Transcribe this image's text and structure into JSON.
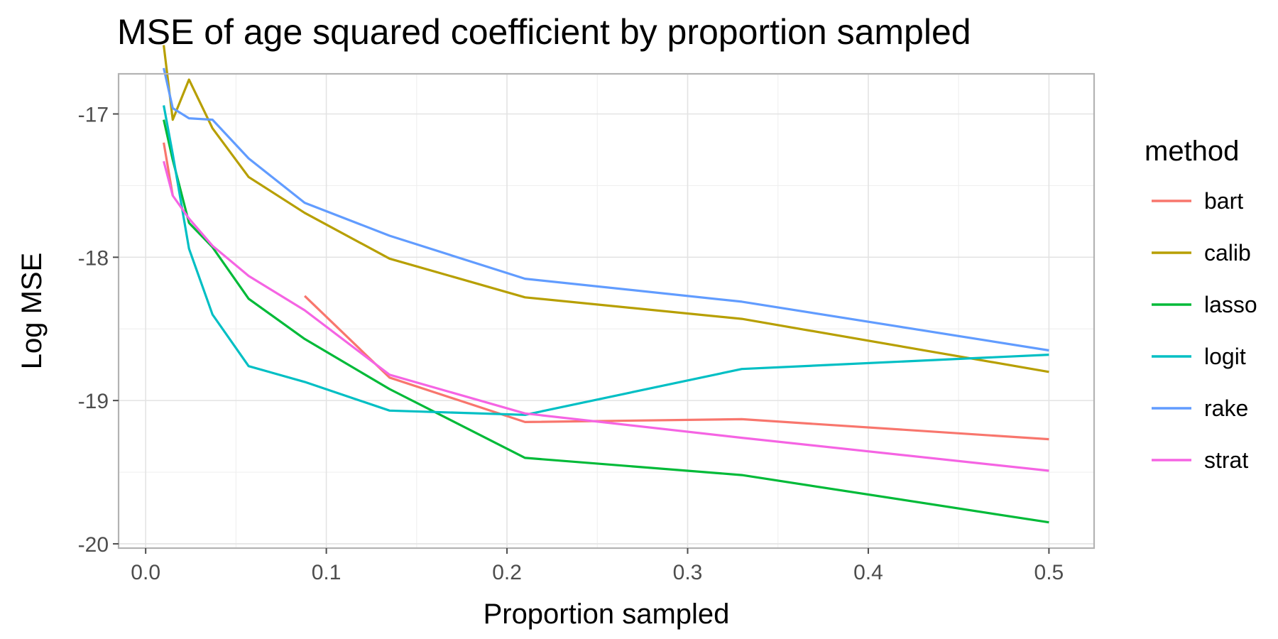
{
  "chart_data": {
    "type": "line",
    "title": "MSE of age squared coefficient by proportion sampled",
    "xlabel": "Proportion sampled",
    "ylabel": "Log MSE",
    "xlim": [
      -0.015,
      0.525
    ],
    "ylim": [
      -20.03,
      -16.72
    ],
    "x_ticks": [
      0.0,
      0.1,
      0.2,
      0.3,
      0.4,
      0.5
    ],
    "x_tick_labels": [
      "0.0",
      "0.1",
      "0.2",
      "0.3",
      "0.4",
      "0.5"
    ],
    "y_ticks": [
      -20,
      -19,
      -18,
      -17
    ],
    "y_tick_labels": [
      "-20",
      "-19",
      "-18",
      "-17"
    ],
    "grid": true,
    "legend": {
      "title": "method",
      "placement": "right"
    },
    "series": [
      {
        "name": "bart",
        "color": "#F8766D",
        "x": [
          0.01,
          0.015
        ],
        "y": [
          -17.2,
          -17.57
        ],
        "segments": [
          {
            "x": [
              0.01,
              0.015
            ],
            "y": [
              -17.2,
              -17.57
            ]
          },
          {
            "x": [
              0.088,
              0.135,
              0.21,
              0.33,
              0.5
            ],
            "y": [
              -18.27,
              -18.84,
              -19.15,
              -19.13,
              -19.27
            ]
          }
        ]
      },
      {
        "name": "calib",
        "color": "#B79F00",
        "segments": [
          {
            "x": [
              0.01,
              0.015,
              0.024,
              0.037,
              0.057,
              0.088,
              0.135,
              0.21,
              0.33,
              0.5
            ],
            "y": [
              -16.52,
              -17.04,
              -16.76,
              -17.1,
              -17.44,
              -17.69,
              -18.01,
              -18.28,
              -18.43,
              -18.8
            ]
          }
        ]
      },
      {
        "name": "lasso",
        "color": "#00BA38",
        "segments": [
          {
            "x": [
              0.01,
              0.015,
              0.024,
              0.037,
              0.057,
              0.088,
              0.135,
              0.21,
              0.33,
              0.5
            ],
            "y": [
              -17.04,
              -17.32,
              -17.76,
              -17.93,
              -18.29,
              -18.57,
              -18.92,
              -19.4,
              -19.52,
              -19.85
            ]
          }
        ]
      },
      {
        "name": "logit",
        "color": "#00BFC4",
        "segments": [
          {
            "x": [
              0.01,
              0.015,
              0.024,
              0.037,
              0.057,
              0.088,
              0.135,
              0.21,
              0.33,
              0.5
            ],
            "y": [
              -16.94,
              -17.28,
              -17.94,
              -18.4,
              -18.76,
              -18.87,
              -19.07,
              -19.1,
              -18.78,
              -18.68
            ]
          }
        ]
      },
      {
        "name": "rake",
        "color": "#619CFF",
        "segments": [
          {
            "x": [
              0.01,
              0.015,
              0.024,
              0.037,
              0.057,
              0.088,
              0.135,
              0.21,
              0.33,
              0.5
            ],
            "y": [
              -16.68,
              -16.96,
              -17.03,
              -17.04,
              -17.31,
              -17.62,
              -17.85,
              -18.15,
              -18.31,
              -18.65
            ]
          }
        ]
      },
      {
        "name": "strat",
        "color": "#F564E3",
        "segments": [
          {
            "x": [
              0.01,
              0.015,
              0.024,
              0.037,
              0.057,
              0.088,
              0.135,
              0.21,
              0.33,
              0.5
            ],
            "y": [
              -17.33,
              -17.57,
              -17.73,
              -17.92,
              -18.13,
              -18.37,
              -18.82,
              -19.09,
              -19.26,
              -19.49
            ]
          }
        ]
      }
    ]
  }
}
